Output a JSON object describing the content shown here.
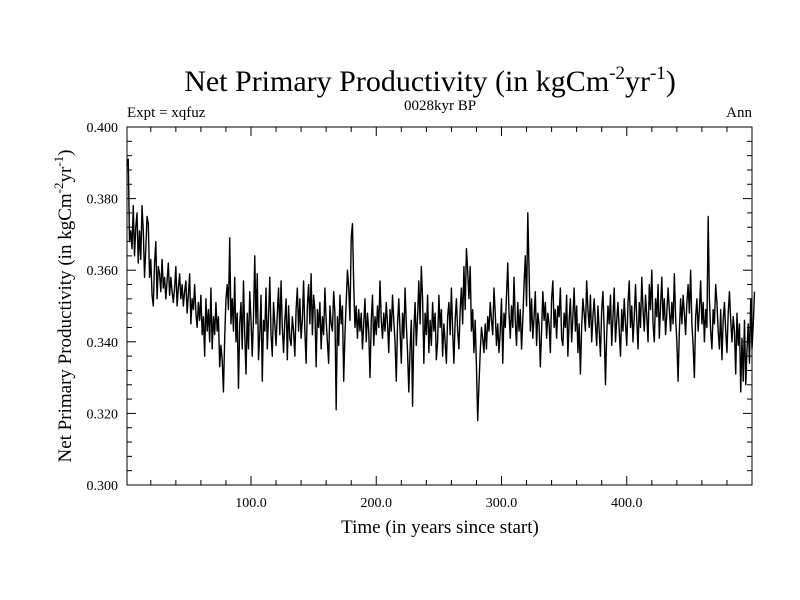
{
  "chart_data": {
    "type": "line",
    "title": {
      "main": "Net Primary Productivity (in kgCm",
      "exp1": "-2",
      "mid": "yr",
      "exp2": "-1",
      "end": ")"
    },
    "subtitle_left": "Expt = xqfuz",
    "subtitle_center": "0028kyr BP",
    "subtitle_right": "Ann",
    "xlabel": "Time (in years since start)",
    "ylabel": {
      "main": "Net Primary Productivity (in kgCm",
      "exp1": "-2",
      "mid": "yr",
      "exp2": "-1",
      "end": ")"
    },
    "xlim": [
      1,
      500
    ],
    "ylim": [
      0.3,
      0.4
    ],
    "x_tick_values": [
      100,
      200,
      300,
      400
    ],
    "x_tick_labels": [
      "100.0",
      "200.0",
      "300.0",
      "400.0"
    ],
    "y_tick_values": [
      0.3,
      0.32,
      0.34,
      0.36,
      0.38,
      0.4
    ],
    "y_tick_labels": [
      "0.300",
      "0.320",
      "0.340",
      "0.360",
      "0.380",
      "0.400"
    ],
    "series": [
      {
        "name": "NPP",
        "x_start": 1,
        "x_step": 1,
        "values": [
          0.389,
          0.391,
          0.368,
          0.371,
          0.366,
          0.378,
          0.364,
          0.372,
          0.376,
          0.362,
          0.371,
          0.363,
          0.378,
          0.371,
          0.358,
          0.366,
          0.375,
          0.373,
          0.358,
          0.363,
          0.353,
          0.35,
          0.362,
          0.368,
          0.352,
          0.361,
          0.359,
          0.354,
          0.363,
          0.355,
          0.358,
          0.352,
          0.357,
          0.362,
          0.353,
          0.358,
          0.354,
          0.351,
          0.355,
          0.361,
          0.35,
          0.355,
          0.359,
          0.352,
          0.356,
          0.35,
          0.354,
          0.357,
          0.348,
          0.353,
          0.359,
          0.345,
          0.352,
          0.349,
          0.356,
          0.348,
          0.344,
          0.351,
          0.346,
          0.353,
          0.342,
          0.347,
          0.336,
          0.352,
          0.343,
          0.349,
          0.34,
          0.355,
          0.338,
          0.347,
          0.342,
          0.351,
          0.343,
          0.347,
          0.333,
          0.339,
          0.335,
          0.326,
          0.341,
          0.352,
          0.356,
          0.349,
          0.369,
          0.345,
          0.352,
          0.343,
          0.358,
          0.34,
          0.348,
          0.327,
          0.345,
          0.351,
          0.338,
          0.357,
          0.342,
          0.331,
          0.348,
          0.338,
          0.354,
          0.346,
          0.336,
          0.347,
          0.364,
          0.345,
          0.359,
          0.335,
          0.342,
          0.353,
          0.329,
          0.346,
          0.343,
          0.355,
          0.338,
          0.347,
          0.358,
          0.342,
          0.336,
          0.351,
          0.345,
          0.339,
          0.348,
          0.355,
          0.342,
          0.357,
          0.344,
          0.337,
          0.346,
          0.352,
          0.335,
          0.35,
          0.341,
          0.339,
          0.347,
          0.343,
          0.336,
          0.349,
          0.355,
          0.343,
          0.352,
          0.341,
          0.346,
          0.357,
          0.343,
          0.334,
          0.35,
          0.356,
          0.345,
          0.359,
          0.342,
          0.353,
          0.349,
          0.333,
          0.349,
          0.344,
          0.351,
          0.338,
          0.347,
          0.342,
          0.355,
          0.346,
          0.34,
          0.334,
          0.35,
          0.345,
          0.343,
          0.354,
          0.348,
          0.321,
          0.347,
          0.339,
          0.353,
          0.345,
          0.35,
          0.329,
          0.342,
          0.351,
          0.36,
          0.355,
          0.346,
          0.369,
          0.373,
          0.356,
          0.344,
          0.35,
          0.341,
          0.349,
          0.343,
          0.348,
          0.338,
          0.345,
          0.352,
          0.34,
          0.348,
          0.343,
          0.33,
          0.346,
          0.353,
          0.339,
          0.347,
          0.342,
          0.35,
          0.344,
          0.357,
          0.346,
          0.341,
          0.348,
          0.343,
          0.351,
          0.345,
          0.337,
          0.349,
          0.343,
          0.353,
          0.346,
          0.34,
          0.329,
          0.345,
          0.352,
          0.343,
          0.334,
          0.348,
          0.341,
          0.355,
          0.345,
          0.337,
          0.326,
          0.338,
          0.346,
          0.322,
          0.343,
          0.351,
          0.339,
          0.347,
          0.357,
          0.345,
          0.361,
          0.352,
          0.334,
          0.348,
          0.342,
          0.353,
          0.337,
          0.346,
          0.339,
          0.351,
          0.343,
          0.348,
          0.335,
          0.34,
          0.353,
          0.344,
          0.349,
          0.336,
          0.345,
          0.34,
          0.334,
          0.347,
          0.351,
          0.342,
          0.355,
          0.343,
          0.334,
          0.346,
          0.352,
          0.343,
          0.338,
          0.349,
          0.355,
          0.345,
          0.361,
          0.349,
          0.366,
          0.36,
          0.352,
          0.361,
          0.343,
          0.349,
          0.337,
          0.346,
          0.333,
          0.318,
          0.328,
          0.337,
          0.344,
          0.341,
          0.337,
          0.345,
          0.338,
          0.347,
          0.343,
          0.351,
          0.346,
          0.342,
          0.355,
          0.348,
          0.339,
          0.345,
          0.337,
          0.343,
          0.352,
          0.334,
          0.348,
          0.344,
          0.353,
          0.362,
          0.348,
          0.341,
          0.35,
          0.344,
          0.358,
          0.346,
          0.339,
          0.351,
          0.343,
          0.349,
          0.338,
          0.346,
          0.356,
          0.364,
          0.35,
          0.376,
          0.36,
          0.343,
          0.352,
          0.341,
          0.347,
          0.354,
          0.339,
          0.348,
          0.345,
          0.333,
          0.343,
          0.354,
          0.346,
          0.351,
          0.341,
          0.348,
          0.345,
          0.337,
          0.352,
          0.357,
          0.344,
          0.349,
          0.341,
          0.35,
          0.347,
          0.355,
          0.341,
          0.339,
          0.348,
          0.344,
          0.353,
          0.336,
          0.346,
          0.352,
          0.34,
          0.347,
          0.355,
          0.343,
          0.35,
          0.337,
          0.345,
          0.331,
          0.344,
          0.352,
          0.348,
          0.343,
          0.357,
          0.349,
          0.344,
          0.353,
          0.34,
          0.347,
          0.352,
          0.345,
          0.339,
          0.35,
          0.343,
          0.336,
          0.349,
          0.354,
          0.343,
          0.328,
          0.342,
          0.35,
          0.345,
          0.353,
          0.339,
          0.347,
          0.355,
          0.34,
          0.346,
          0.351,
          0.343,
          0.336,
          0.349,
          0.343,
          0.352,
          0.345,
          0.339,
          0.351,
          0.357,
          0.344,
          0.35,
          0.34,
          0.347,
          0.356,
          0.346,
          0.338,
          0.351,
          0.344,
          0.358,
          0.349,
          0.343,
          0.353,
          0.347,
          0.34,
          0.356,
          0.349,
          0.36,
          0.345,
          0.34,
          0.352,
          0.347,
          0.356,
          0.341,
          0.35,
          0.358,
          0.346,
          0.352,
          0.342,
          0.348,
          0.355,
          0.349,
          0.343,
          0.351,
          0.345,
          0.359,
          0.347,
          0.34,
          0.329,
          0.343,
          0.352,
          0.345,
          0.353,
          0.348,
          0.342,
          0.351,
          0.356,
          0.348,
          0.36,
          0.345,
          0.339,
          0.33,
          0.347,
          0.352,
          0.343,
          0.349,
          0.357,
          0.345,
          0.351,
          0.34,
          0.349,
          0.344,
          0.375,
          0.352,
          0.343,
          0.338,
          0.349,
          0.345,
          0.356,
          0.351,
          0.343,
          0.338,
          0.349,
          0.335,
          0.346,
          0.351,
          0.343,
          0.337,
          0.348,
          0.354,
          0.346,
          0.34,
          0.347,
          0.343,
          0.331,
          0.348,
          0.339,
          0.345,
          0.326,
          0.341,
          0.329,
          0.346,
          0.328,
          0.338,
          0.345,
          0.334,
          0.352,
          0.338,
          0.345,
          0.354
        ]
      }
    ]
  }
}
